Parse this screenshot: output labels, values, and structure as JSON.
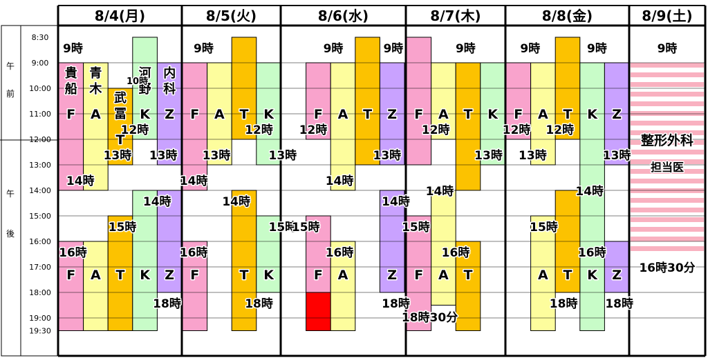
{
  "days": [
    "8/4(月)",
    "8/5(火)",
    "8/6(水)",
    "8/7(木)",
    "8/8(金)",
    "8/9(土)"
  ],
  "ampm": [
    "午",
    "前",
    "午",
    "後"
  ],
  "times": [
    "8:30",
    "9:00",
    "10:00",
    "11:00",
    "12:00",
    "13:00",
    "14:00",
    "15:00",
    "16:00",
    "17:00",
    "18:00",
    "19:00",
    "19:30"
  ],
  "colors": {
    "pink": "#f9a3cc",
    "yellow": "#fdfd9d",
    "orange": "#fcc200",
    "green": "#c8fcc8",
    "purple": "#c9a2ff",
    "red": "#ff0000",
    "stripe": "#f9b1c0"
  },
  "bars": [
    {
      "d": 0,
      "i": 0,
      "s": 9,
      "e": 14,
      "c": "pink"
    },
    {
      "d": 0,
      "i": 1,
      "s": 9,
      "e": 14,
      "c": "yellow"
    },
    {
      "d": 0,
      "i": 2,
      "s": 10,
      "e": 13,
      "c": "orange"
    },
    {
      "d": 0,
      "i": 3,
      "s": 8.5,
      "e": 12,
      "c": "green"
    },
    {
      "d": 0,
      "i": 4,
      "s": 9,
      "e": 13,
      "c": "purple"
    },
    {
      "d": 0,
      "i": 0,
      "s": 16,
      "e": 19.5,
      "c": "pink"
    },
    {
      "d": 0,
      "i": 1,
      "s": 16,
      "e": 19.5,
      "c": "yellow"
    },
    {
      "d": 0,
      "i": 2,
      "s": 15,
      "e": 19.5,
      "c": "orange"
    },
    {
      "d": 0,
      "i": 3,
      "s": 14,
      "e": 19.5,
      "c": "green"
    },
    {
      "d": 0,
      "i": 4,
      "s": 14,
      "e": 18,
      "c": "purple"
    },
    {
      "d": 1,
      "i": 0,
      "s": 9,
      "e": 14,
      "c": "pink"
    },
    {
      "d": 1,
      "i": 1,
      "s": 9,
      "e": 13,
      "c": "yellow"
    },
    {
      "d": 1,
      "i": 2,
      "s": 8.5,
      "e": 12,
      "c": "orange"
    },
    {
      "d": 1,
      "i": 3,
      "s": 9,
      "e": 13,
      "c": "green"
    },
    {
      "d": 1,
      "i": 0,
      "s": 16,
      "e": 19.5,
      "c": "pink"
    },
    {
      "d": 1,
      "i": 2,
      "s": 14,
      "e": 19.5,
      "c": "orange"
    },
    {
      "d": 1,
      "i": 3,
      "s": 15,
      "e": 18,
      "c": "green"
    },
    {
      "d": 2,
      "i": 1,
      "s": 9,
      "e": 12,
      "c": "pink"
    },
    {
      "d": 2,
      "i": 2,
      "s": 9,
      "e": 14,
      "c": "yellow"
    },
    {
      "d": 2,
      "i": 3,
      "s": 8.5,
      "e": 13,
      "c": "orange"
    },
    {
      "d": 2,
      "i": 4,
      "s": 9,
      "e": 13,
      "c": "purple"
    },
    {
      "d": 2,
      "i": 1,
      "s": 15,
      "e": 18,
      "c": "pink"
    },
    {
      "d": 2,
      "i": 1,
      "s": 18,
      "e": 19.5,
      "c": "red"
    },
    {
      "d": 2,
      "i": 2,
      "s": 16,
      "e": 19.5,
      "c": "yellow"
    },
    {
      "d": 2,
      "i": 4,
      "s": 14,
      "e": 18,
      "c": "purple"
    },
    {
      "d": 3,
      "i": 0,
      "s": 8.5,
      "e": 13,
      "c": "pink"
    },
    {
      "d": 3,
      "i": 1,
      "s": 9,
      "e": 12,
      "c": "yellow"
    },
    {
      "d": 3,
      "i": 2,
      "s": 9,
      "e": 14,
      "c": "orange"
    },
    {
      "d": 3,
      "i": 3,
      "s": 9,
      "e": 13,
      "c": "green"
    },
    {
      "d": 3,
      "i": 0,
      "s": 15,
      "e": 19.5,
      "c": "pink"
    },
    {
      "d": 3,
      "i": 1,
      "s": 14,
      "e": 18.5,
      "c": "yellow"
    },
    {
      "d": 3,
      "i": 2,
      "s": 16,
      "e": 19.5,
      "c": "orange"
    },
    {
      "d": 4,
      "i": 0,
      "s": 9,
      "e": 12,
      "c": "pink"
    },
    {
      "d": 4,
      "i": 1,
      "s": 9,
      "e": 13,
      "c": "yellow"
    },
    {
      "d": 4,
      "i": 2,
      "s": 8.5,
      "e": 12,
      "c": "orange"
    },
    {
      "d": 4,
      "i": 3,
      "s": 9,
      "e": 19.5,
      "c": "green"
    },
    {
      "d": 4,
      "i": 4,
      "s": 9,
      "e": 13,
      "c": "purple"
    },
    {
      "d": 4,
      "i": 1,
      "s": 15,
      "e": 19.5,
      "c": "yellow"
    },
    {
      "d": 4,
      "i": 2,
      "s": 14,
      "e": 18,
      "c": "orange"
    },
    {
      "d": 4,
      "i": 4,
      "s": 16,
      "e": 18,
      "c": "purple"
    }
  ],
  "stripe": {
    "d": 5,
    "s": 9,
    "e": 16.5
  },
  "doctors": [
    {
      "d": 0,
      "i": 0,
      "t": "貴"
    },
    {
      "d": 0,
      "i": 0,
      "t": "船"
    },
    {
      "d": 0,
      "i": 1,
      "t": "青"
    },
    {
      "d": 0,
      "i": 1,
      "t": "木"
    },
    {
      "d": 0,
      "i": 3,
      "t": "河"
    },
    {
      "d": 0,
      "i": 3,
      "t": "野"
    },
    {
      "d": 0,
      "i": 4,
      "t": "内"
    },
    {
      "d": 0,
      "i": 4,
      "t": "科"
    },
    {
      "d": 0,
      "i": 2,
      "t": "武"
    },
    {
      "d": 0,
      "i": 2,
      "t": "冨"
    }
  ],
  "letters": [
    {
      "d": 0,
      "i": 0,
      "t": "F",
      "y": 11
    },
    {
      "d": 0,
      "i": 1,
      "t": "A",
      "y": 11
    },
    {
      "d": 0,
      "i": 2,
      "t": "T",
      "y": 12
    },
    {
      "d": 0,
      "i": 3,
      "t": "K",
      "y": 11
    },
    {
      "d": 0,
      "i": 4,
      "t": "Z",
      "y": 11
    },
    {
      "d": 0,
      "i": 0,
      "t": "F",
      "y": 17.3
    },
    {
      "d": 0,
      "i": 1,
      "t": "A",
      "y": 17.3
    },
    {
      "d": 0,
      "i": 2,
      "t": "T",
      "y": 17.3
    },
    {
      "d": 0,
      "i": 3,
      "t": "K",
      "y": 17.3
    },
    {
      "d": 0,
      "i": 4,
      "t": "Z",
      "y": 17.3
    },
    {
      "d": 1,
      "i": 0,
      "t": "F",
      "y": 11
    },
    {
      "d": 1,
      "i": 1,
      "t": "A",
      "y": 11
    },
    {
      "d": 1,
      "i": 2,
      "t": "T",
      "y": 11
    },
    {
      "d": 1,
      "i": 3,
      "t": "K",
      "y": 11
    },
    {
      "d": 1,
      "i": 0,
      "t": "F",
      "y": 17.3
    },
    {
      "d": 1,
      "i": 2,
      "t": "T",
      "y": 17.3
    },
    {
      "d": 1,
      "i": 3,
      "t": "K",
      "y": 17.3
    },
    {
      "d": 2,
      "i": 1,
      "t": "F",
      "y": 11
    },
    {
      "d": 2,
      "i": 2,
      "t": "A",
      "y": 11
    },
    {
      "d": 2,
      "i": 3,
      "t": "T",
      "y": 11
    },
    {
      "d": 2,
      "i": 4,
      "t": "Z",
      "y": 11
    },
    {
      "d": 2,
      "i": 1,
      "t": "F",
      "y": 17.3
    },
    {
      "d": 2,
      "i": 2,
      "t": "A",
      "y": 17.3
    },
    {
      "d": 2,
      "i": 4,
      "t": "Z",
      "y": 17.3
    },
    {
      "d": 3,
      "i": 0,
      "t": "F",
      "y": 11
    },
    {
      "d": 3,
      "i": 1,
      "t": "A",
      "y": 11
    },
    {
      "d": 3,
      "i": 2,
      "t": "T",
      "y": 11
    },
    {
      "d": 3,
      "i": 3,
      "t": "K",
      "y": 11
    },
    {
      "d": 3,
      "i": 0,
      "t": "F",
      "y": 17.3
    },
    {
      "d": 3,
      "i": 1,
      "t": "A",
      "y": 17.3
    },
    {
      "d": 3,
      "i": 2,
      "t": "T",
      "y": 17.3
    },
    {
      "d": 4,
      "i": 0,
      "t": "F",
      "y": 11
    },
    {
      "d": 4,
      "i": 1,
      "t": "A",
      "y": 11
    },
    {
      "d": 4,
      "i": 2,
      "t": "T",
      "y": 11
    },
    {
      "d": 4,
      "i": 3,
      "t": "K",
      "y": 11
    },
    {
      "d": 4,
      "i": 4,
      "t": "Z",
      "y": 11
    },
    {
      "d": 4,
      "i": 1,
      "t": "A",
      "y": 17.3
    },
    {
      "d": 4,
      "i": 2,
      "t": "T",
      "y": 17.3
    },
    {
      "d": 4,
      "i": 3,
      "t": "K",
      "y": 17.3
    },
    {
      "d": 4,
      "i": 4,
      "t": "Z",
      "y": 17.3
    }
  ],
  "hourLabels": [
    {
      "d": 0,
      "p": 0.12,
      "y": 8.7,
      "t": "9時"
    },
    {
      "d": 0,
      "p": 0.64,
      "y": 9.65,
      "t": "10時"
    },
    {
      "d": 0,
      "p": 0.62,
      "y": 11.6,
      "t": "12時"
    },
    {
      "d": 0,
      "p": 0.48,
      "y": 12.6,
      "t": "13時"
    },
    {
      "d": 0,
      "p": 0.85,
      "y": 12.6,
      "t": "13時"
    },
    {
      "d": 0,
      "p": 0.18,
      "y": 13.6,
      "t": "14時"
    },
    {
      "d": 0,
      "p": 0.8,
      "y": 14.4,
      "t": "14時"
    },
    {
      "d": 0,
      "p": 0.52,
      "y": 15.4,
      "t": "15時"
    },
    {
      "d": 0,
      "p": 0.12,
      "y": 16.4,
      "t": "16時"
    },
    {
      "d": 0,
      "p": 0.88,
      "y": 18.4,
      "t": "18時"
    },
    {
      "d": 1,
      "p": 0.22,
      "y": 8.7,
      "t": "9時"
    },
    {
      "d": 1,
      "p": 0.78,
      "y": 11.6,
      "t": "12時"
    },
    {
      "d": 1,
      "p": 0.35,
      "y": 12.6,
      "t": "13時"
    },
    {
      "d": 1,
      "p": 1.02,
      "y": 12.6,
      "t": "13時"
    },
    {
      "d": 1,
      "p": 0.12,
      "y": 13.6,
      "t": "14時"
    },
    {
      "d": 1,
      "p": 0.55,
      "y": 14.4,
      "t": "14時"
    },
    {
      "d": 1,
      "p": 1.02,
      "y": 15.4,
      "t": "15時"
    },
    {
      "d": 1,
      "p": 0.12,
      "y": 16.4,
      "t": "16時"
    },
    {
      "d": 1,
      "p": 0.78,
      "y": 18.4,
      "t": "18時"
    },
    {
      "d": 2,
      "p": 0.42,
      "y": 8.7,
      "t": "9時"
    },
    {
      "d": 2,
      "p": 0.9,
      "y": 8.7,
      "t": "9時"
    },
    {
      "d": 2,
      "p": 0.26,
      "y": 11.6,
      "t": "12時"
    },
    {
      "d": 2,
      "p": 0.85,
      "y": 12.6,
      "t": "13時"
    },
    {
      "d": 2,
      "p": 0.47,
      "y": 13.6,
      "t": "14時"
    },
    {
      "d": 2,
      "p": 0.92,
      "y": 14.4,
      "t": "14時"
    },
    {
      "d": 2,
      "p": 0.2,
      "y": 15.4,
      "t": "15時"
    },
    {
      "d": 2,
      "p": 0.47,
      "y": 16.4,
      "t": "16時"
    },
    {
      "d": 2,
      "p": 0.92,
      "y": 18.4,
      "t": "18時"
    },
    {
      "d": 3,
      "p": 0.6,
      "y": 8.7,
      "t": "9時"
    },
    {
      "d": 3,
      "p": 0.3,
      "y": 11.6,
      "t": "12時"
    },
    {
      "d": 3,
      "p": 0.83,
      "y": 12.6,
      "t": "13時"
    },
    {
      "d": 3,
      "p": 0.34,
      "y": 14,
      "t": "14時"
    },
    {
      "d": 3,
      "p": 0.1,
      "y": 15.4,
      "t": "15時"
    },
    {
      "d": 3,
      "p": 0.5,
      "y": 16.4,
      "t": "16時"
    },
    {
      "d": 3,
      "p": 0.24,
      "y": 18.95,
      "t": "18時30分"
    },
    {
      "d": 4,
      "p": 0.2,
      "y": 8.7,
      "t": "9時"
    },
    {
      "d": 4,
      "p": 0.74,
      "y": 8.7,
      "t": "9時"
    },
    {
      "d": 4,
      "p": 0.09,
      "y": 11.6,
      "t": "12時"
    },
    {
      "d": 4,
      "p": 0.44,
      "y": 11.6,
      "t": "12時"
    },
    {
      "d": 4,
      "p": 0.22,
      "y": 12.6,
      "t": "13時"
    },
    {
      "d": 4,
      "p": 0.9,
      "y": 12.6,
      "t": "13時"
    },
    {
      "d": 4,
      "p": 0.68,
      "y": 14,
      "t": "14時"
    },
    {
      "d": 4,
      "p": 0.31,
      "y": 15.4,
      "t": "15時"
    },
    {
      "d": 4,
      "p": 0.7,
      "y": 16.4,
      "t": "16時"
    },
    {
      "d": 4,
      "p": 0.47,
      "y": 18.4,
      "t": "18時"
    },
    {
      "d": 4,
      "p": 0.92,
      "y": 18.4,
      "t": "18時"
    },
    {
      "d": 5,
      "p": 0.5,
      "y": 8.7,
      "t": "9時"
    },
    {
      "d": 5,
      "p": 0.5,
      "y": 17.0,
      "t": "16時30分"
    }
  ],
  "sat": {
    "line1": "整形外科",
    "line2": "担当医"
  }
}
